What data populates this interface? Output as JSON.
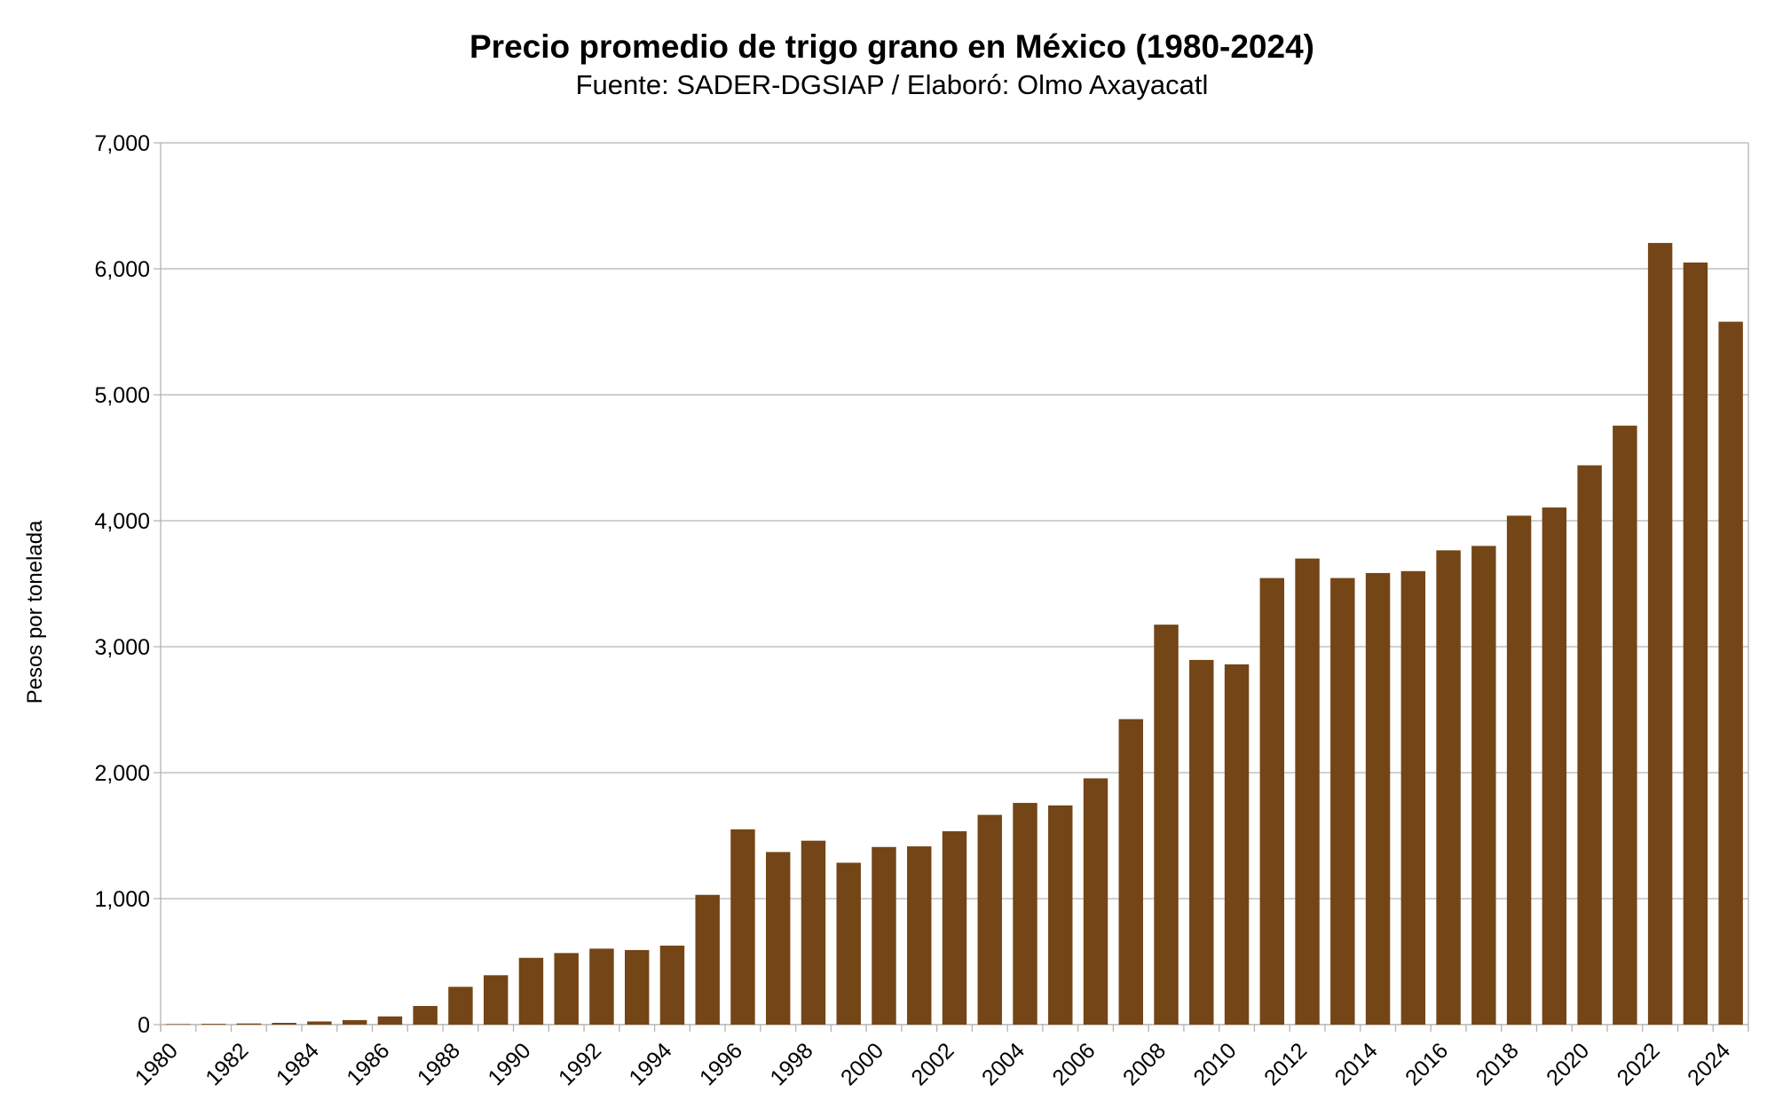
{
  "chart_data": {
    "type": "bar",
    "title": "Precio promedio de trigo grano en México (1980-2024)",
    "subtitle": "Fuente: SADER-DGSIAP / Elaboró: Olmo Axayacatl",
    "xlabel": "",
    "ylabel": "Pesos por tonelada",
    "ylim": [
      0,
      7000
    ],
    "yticks": [
      "0",
      "1,000",
      "2,000",
      "3,000",
      "4,000",
      "5,000",
      "6,000",
      "7,000"
    ],
    "grid": true,
    "legend": "none",
    "bar_color": "#744516",
    "categories": [
      "1980",
      "1981",
      "1982",
      "1983",
      "1984",
      "1985",
      "1986",
      "1987",
      "1988",
      "1989",
      "1990",
      "1991",
      "1992",
      "1993",
      "1994",
      "1995",
      "1996",
      "1997",
      "1998",
      "1999",
      "2000",
      "2001",
      "2002",
      "2003",
      "2004",
      "2005",
      "2006",
      "2007",
      "2008",
      "2009",
      "2010",
      "2011",
      "2012",
      "2013",
      "2014",
      "2015",
      "2016",
      "2017",
      "2018",
      "2019",
      "2020",
      "2021",
      "2022",
      "2023",
      "2024"
    ],
    "values": [
      4,
      6,
      9,
      14,
      25,
      36,
      65,
      148,
      300,
      392,
      530,
      568,
      603,
      592,
      627,
      1030,
      1550,
      1370,
      1460,
      1285,
      1410,
      1415,
      1535,
      1665,
      1760,
      1740,
      1955,
      2425,
      3175,
      2895,
      2860,
      3545,
      3700,
      3545,
      3585,
      3600,
      3765,
      3800,
      4040,
      4105,
      4440,
      4755,
      6205,
      6050,
      5580
    ]
  }
}
